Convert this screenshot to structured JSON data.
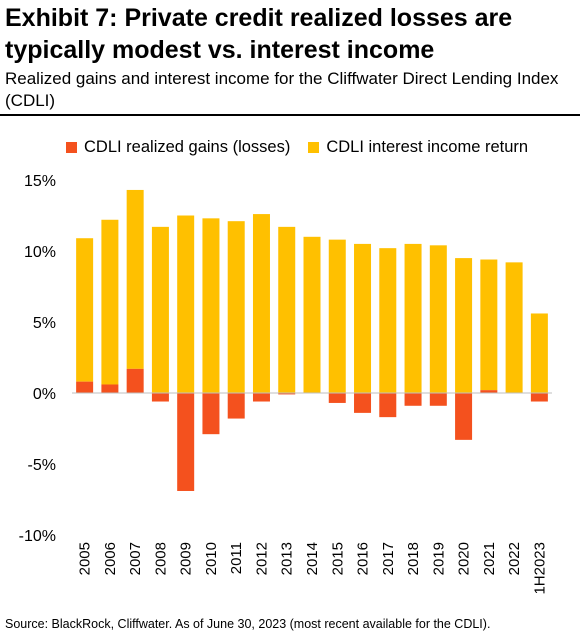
{
  "header": {
    "title": "Exhibit 7: Private credit realized losses are typically modest vs. interest income",
    "subtitle": "Realized gains and interest income for the Cliffwater Direct Lending Index (CDLI)"
  },
  "legend": {
    "items": [
      {
        "label": "CDLI realized gains (losses)",
        "color": "#f4511e"
      },
      {
        "label": "CDLI interest income return",
        "color": "#ffc000"
      }
    ]
  },
  "footer": {
    "source": "Source: BlackRock, Cliffwater. As of June 30, 2023 (most recent available for the CDLI)."
  },
  "chart_data": {
    "type": "bar",
    "categories": [
      "2005",
      "2006",
      "2007",
      "2008",
      "2009",
      "2010",
      "2011",
      "2012",
      "2013",
      "2014",
      "2015",
      "2016",
      "2017",
      "2018",
      "2019",
      "2020",
      "2021",
      "2022",
      "1H2023"
    ],
    "series": [
      {
        "name": "CDLI realized gains (losses)",
        "color": "#f4511e",
        "values": [
          0.8,
          0.6,
          1.7,
          -0.6,
          -6.9,
          -2.9,
          -1.8,
          -0.6,
          -0.1,
          0.0,
          -0.7,
          -1.4,
          -1.7,
          -0.9,
          -0.9,
          -3.3,
          0.2,
          0.0,
          -0.6
        ]
      },
      {
        "name": "CDLI interest income return",
        "color": "#ffc000",
        "values": [
          10.1,
          11.6,
          12.6,
          11.7,
          12.5,
          12.3,
          12.1,
          12.6,
          11.7,
          11.0,
          10.8,
          10.5,
          10.2,
          10.5,
          10.4,
          9.5,
          9.2,
          9.2,
          5.6
        ]
      }
    ],
    "yticks": [
      "15%",
      "10%",
      "5%",
      "0%",
      "-5%",
      "-10%"
    ],
    "ylim": [
      -10,
      15
    ],
    "grid": false,
    "legend_position": "top"
  }
}
